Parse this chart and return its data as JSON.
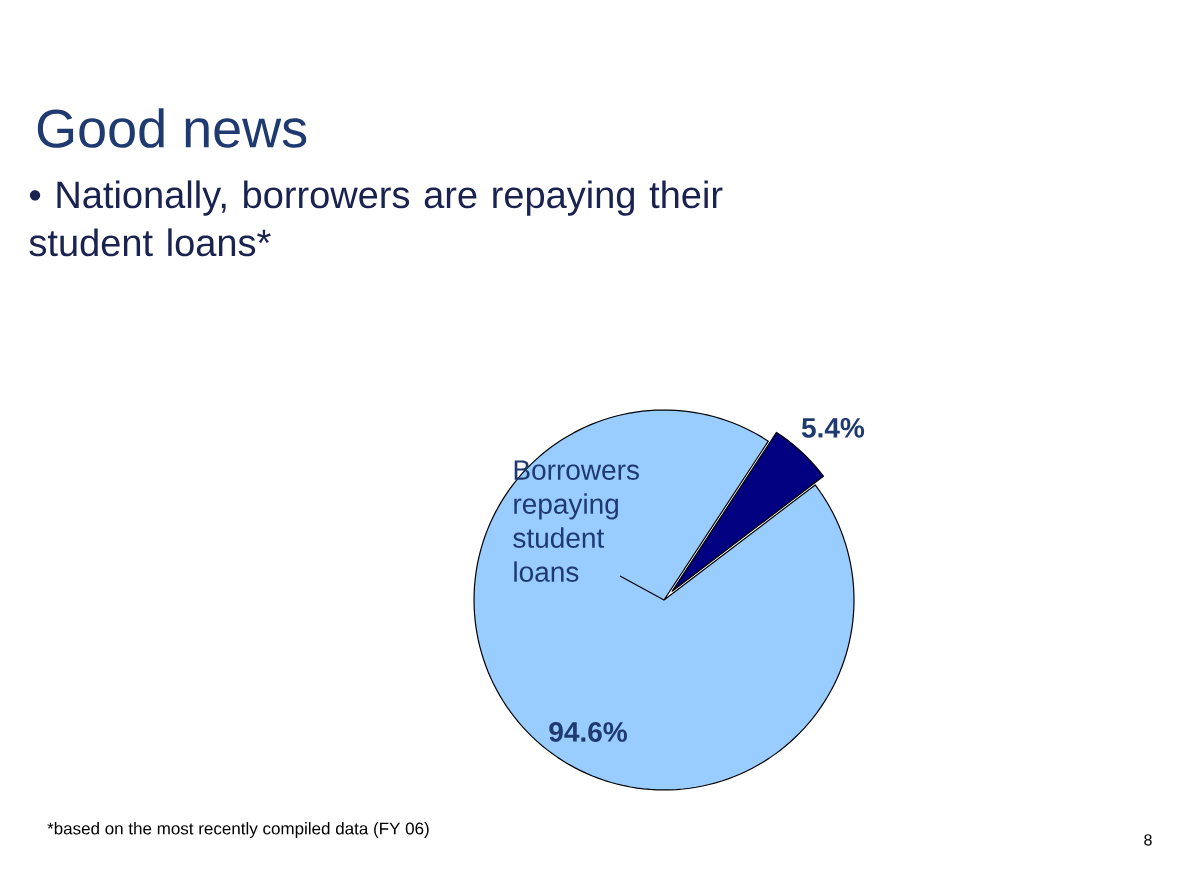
{
  "chart_data": {
    "type": "pie",
    "title": "Good news",
    "subtitle": "• Nationally, borrowers are repaying their student loans*",
    "categories": [
      "Borrowers repaying student loans",
      null
    ],
    "values": [
      94.6,
      5.4
    ],
    "colors": [
      "#99ccff",
      "#000080"
    ],
    "value_labels": [
      "94.6%",
      "5.4%"
    ],
    "annotations": [
      "*based on the most recently compiled data (FY 06)",
      "8"
    ]
  }
}
